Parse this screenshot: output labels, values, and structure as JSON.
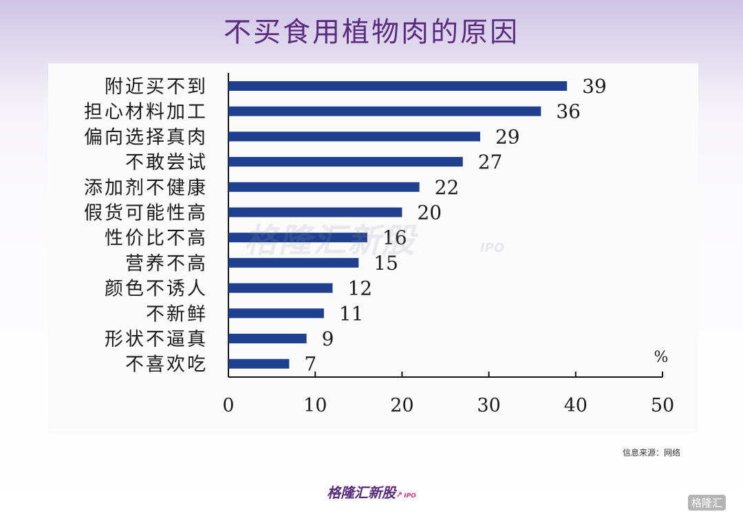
{
  "title": "不买食用植物肉的原因",
  "source": "信息来源：网络",
  "footer_logo": {
    "text": "格隆汇新股",
    "sub": "IPO"
  },
  "watermark": {
    "text": "格隆汇新股",
    "sub": "IPO"
  },
  "corner_badge": "格隆汇",
  "colors": {
    "bar": "#1f3f8f",
    "title": "#5a2a7e",
    "accent": "#e0377a"
  },
  "chart_data": {
    "type": "bar",
    "orientation": "horizontal",
    "categories": [
      "附近买不到",
      "担心材料加工",
      "偏向选择真肉",
      "不敢尝试",
      "添加剂不健康",
      "假货可能性高",
      "性价比不高",
      "营养不高",
      "颜色不诱人",
      "不新鲜",
      "形状不逼真",
      "不喜欢吃"
    ],
    "values": [
      39,
      36,
      29,
      27,
      22,
      20,
      16,
      15,
      12,
      11,
      9,
      7
    ],
    "xlim": [
      0,
      50
    ],
    "xticks": [
      "0",
      "10",
      "20",
      "30",
      "40",
      "50"
    ],
    "unit": "%",
    "title": "不买食用植物肉的原因"
  }
}
